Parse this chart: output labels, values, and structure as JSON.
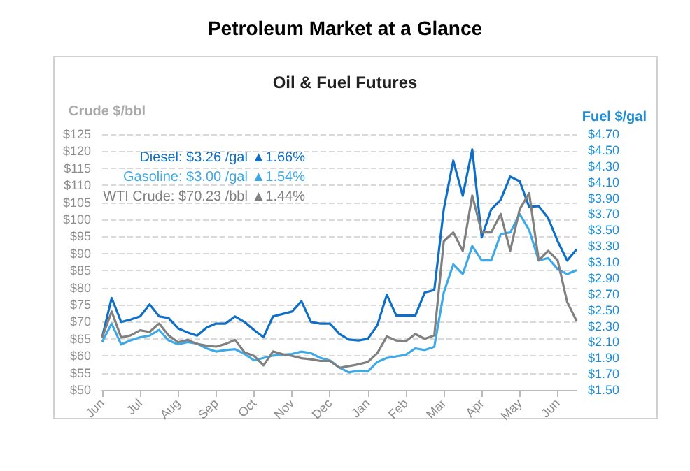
{
  "chart_data": {
    "type": "line",
    "title": "Petroleum Market at a Glance",
    "subtitle": "Oil & Fuel Futures",
    "ylabel": "Crude $/bbl",
    "y2label": "Fuel $/gal",
    "categories": [
      "Jun",
      null,
      null,
      null,
      "Jul",
      null,
      null,
      null,
      "Aug",
      null,
      null,
      null,
      "Sep",
      null,
      null,
      null,
      "Oct",
      null,
      null,
      null,
      "Nov",
      null,
      null,
      null,
      "Dec",
      null,
      null,
      null,
      "Jan",
      null,
      null,
      null,
      "Feb",
      null,
      null,
      null,
      "Mar",
      null,
      null,
      null,
      "Apr",
      null,
      null,
      null,
      "May",
      null,
      null,
      null,
      "Jun",
      null,
      null
    ],
    "series": [
      {
        "color": "#0f6fc6",
        "axis": "y2",
        "values": [
          2.16,
          2.65,
          2.35,
          2.38,
          2.42,
          2.57,
          2.42,
          2.4,
          2.27,
          2.22,
          2.18,
          2.28,
          2.33,
          2.33,
          2.42,
          2.35,
          2.25,
          2.16,
          2.42,
          2.45,
          2.48,
          2.61,
          2.35,
          2.33,
          2.33,
          2.2,
          2.13,
          2.12,
          2.14,
          2.31,
          2.69,
          2.43,
          2.43,
          2.43,
          2.72,
          2.75,
          3.76,
          4.37,
          3.93,
          4.51,
          3.41,
          3.76,
          3.88,
          4.17,
          4.11,
          3.79,
          3.8,
          3.65,
          3.36,
          3.12,
          3.26
        ]
      },
      {
        "color": "#3fa9e8",
        "axis": "y2",
        "values": [
          2.1,
          2.33,
          2.07,
          2.12,
          2.16,
          2.18,
          2.25,
          2.12,
          2.07,
          2.1,
          2.08,
          2.02,
          1.98,
          2.0,
          2.01,
          1.95,
          1.87,
          1.9,
          1.93,
          1.94,
          1.95,
          1.98,
          1.96,
          1.9,
          1.87,
          1.78,
          1.72,
          1.74,
          1.73,
          1.85,
          1.9,
          1.92,
          1.94,
          2.02,
          2.0,
          2.04,
          2.72,
          3.07,
          2.95,
          3.3,
          3.12,
          3.12,
          3.45,
          3.47,
          3.7,
          3.5,
          3.12,
          3.15,
          3.01,
          2.95,
          3.0
        ]
      },
      {
        "color": "#808080",
        "values": [
          65.4,
          73,
          65.4,
          66,
          67.5,
          67,
          69.5,
          66,
          64,
          64.7,
          63.5,
          63,
          62.7,
          63.5,
          64.7,
          61,
          60,
          57.2,
          61.3,
          60.5,
          60,
          59.3,
          59,
          58.5,
          58.5,
          56.5,
          57,
          57.5,
          58.2,
          60.8,
          65.7,
          64.5,
          64.3,
          66.4,
          65,
          66,
          93.6,
          96.2,
          90.8,
          107,
          96.2,
          96.2,
          101.6,
          90.8,
          103,
          107.7,
          88,
          90.8,
          88,
          75.8,
          70.2
        ]
      }
    ],
    "annotations": [
      "Diesel: $3.26 /gal ▲1.66%",
      "Gasoline: $3.00 /gal ▲1.54%",
      "WTI Crude: $70.23 /bbl ▲1.44%"
    ],
    "ylim": [
      50,
      125
    ],
    "yticks": [
      {
        "value": 50,
        "label": "$50"
      },
      {
        "value": 55,
        "label": "$55"
      },
      {
        "value": 60,
        "label": "$60"
      },
      {
        "value": 65,
        "label": "$65"
      },
      {
        "value": 70,
        "label": "$70"
      },
      {
        "value": 75,
        "label": "$75"
      },
      {
        "value": 80,
        "label": "$80"
      },
      {
        "value": 85,
        "label": "$85"
      },
      {
        "value": 90,
        "label": "$90"
      },
      {
        "value": 95,
        "label": "$95"
      },
      {
        "value": 100,
        "label": "$100"
      },
      {
        "value": 105,
        "label": "$105"
      },
      {
        "value": 110,
        "label": "$110"
      },
      {
        "value": 115,
        "label": "$115"
      },
      {
        "value": 120,
        "label": "$120"
      },
      {
        "value": 125,
        "label": "$125"
      }
    ],
    "y2lim": [
      1.5,
      4.7
    ],
    "y2ticks": [
      {
        "value": 1.5,
        "label": "$1.50"
      },
      {
        "value": 1.7,
        "label": "$1.70"
      },
      {
        "value": 1.9,
        "label": "$1.90"
      },
      {
        "value": 2.1,
        "label": "$2.10"
      },
      {
        "value": 2.3,
        "label": "$2.30"
      },
      {
        "value": 2.5,
        "label": "$2.50"
      },
      {
        "value": 2.7,
        "label": "$2.70"
      },
      {
        "value": 2.9,
        "label": "$2.90"
      },
      {
        "value": 3.1,
        "label": "$3.10"
      },
      {
        "value": 3.3,
        "label": "$3.30"
      },
      {
        "value": 3.5,
        "label": "$3.50"
      },
      {
        "value": 3.7,
        "label": "$3.70"
      },
      {
        "value": 3.9,
        "label": "$3.90"
      },
      {
        "value": 4.1,
        "label": "$4.10"
      },
      {
        "value": 4.3,
        "label": "$4.30"
      },
      {
        "value": 4.5,
        "label": "$4.50"
      },
      {
        "value": 4.7,
        "label": "$4.70"
      }
    ],
    "grid": "y",
    "marker": "none",
    "line_style": "solid"
  }
}
